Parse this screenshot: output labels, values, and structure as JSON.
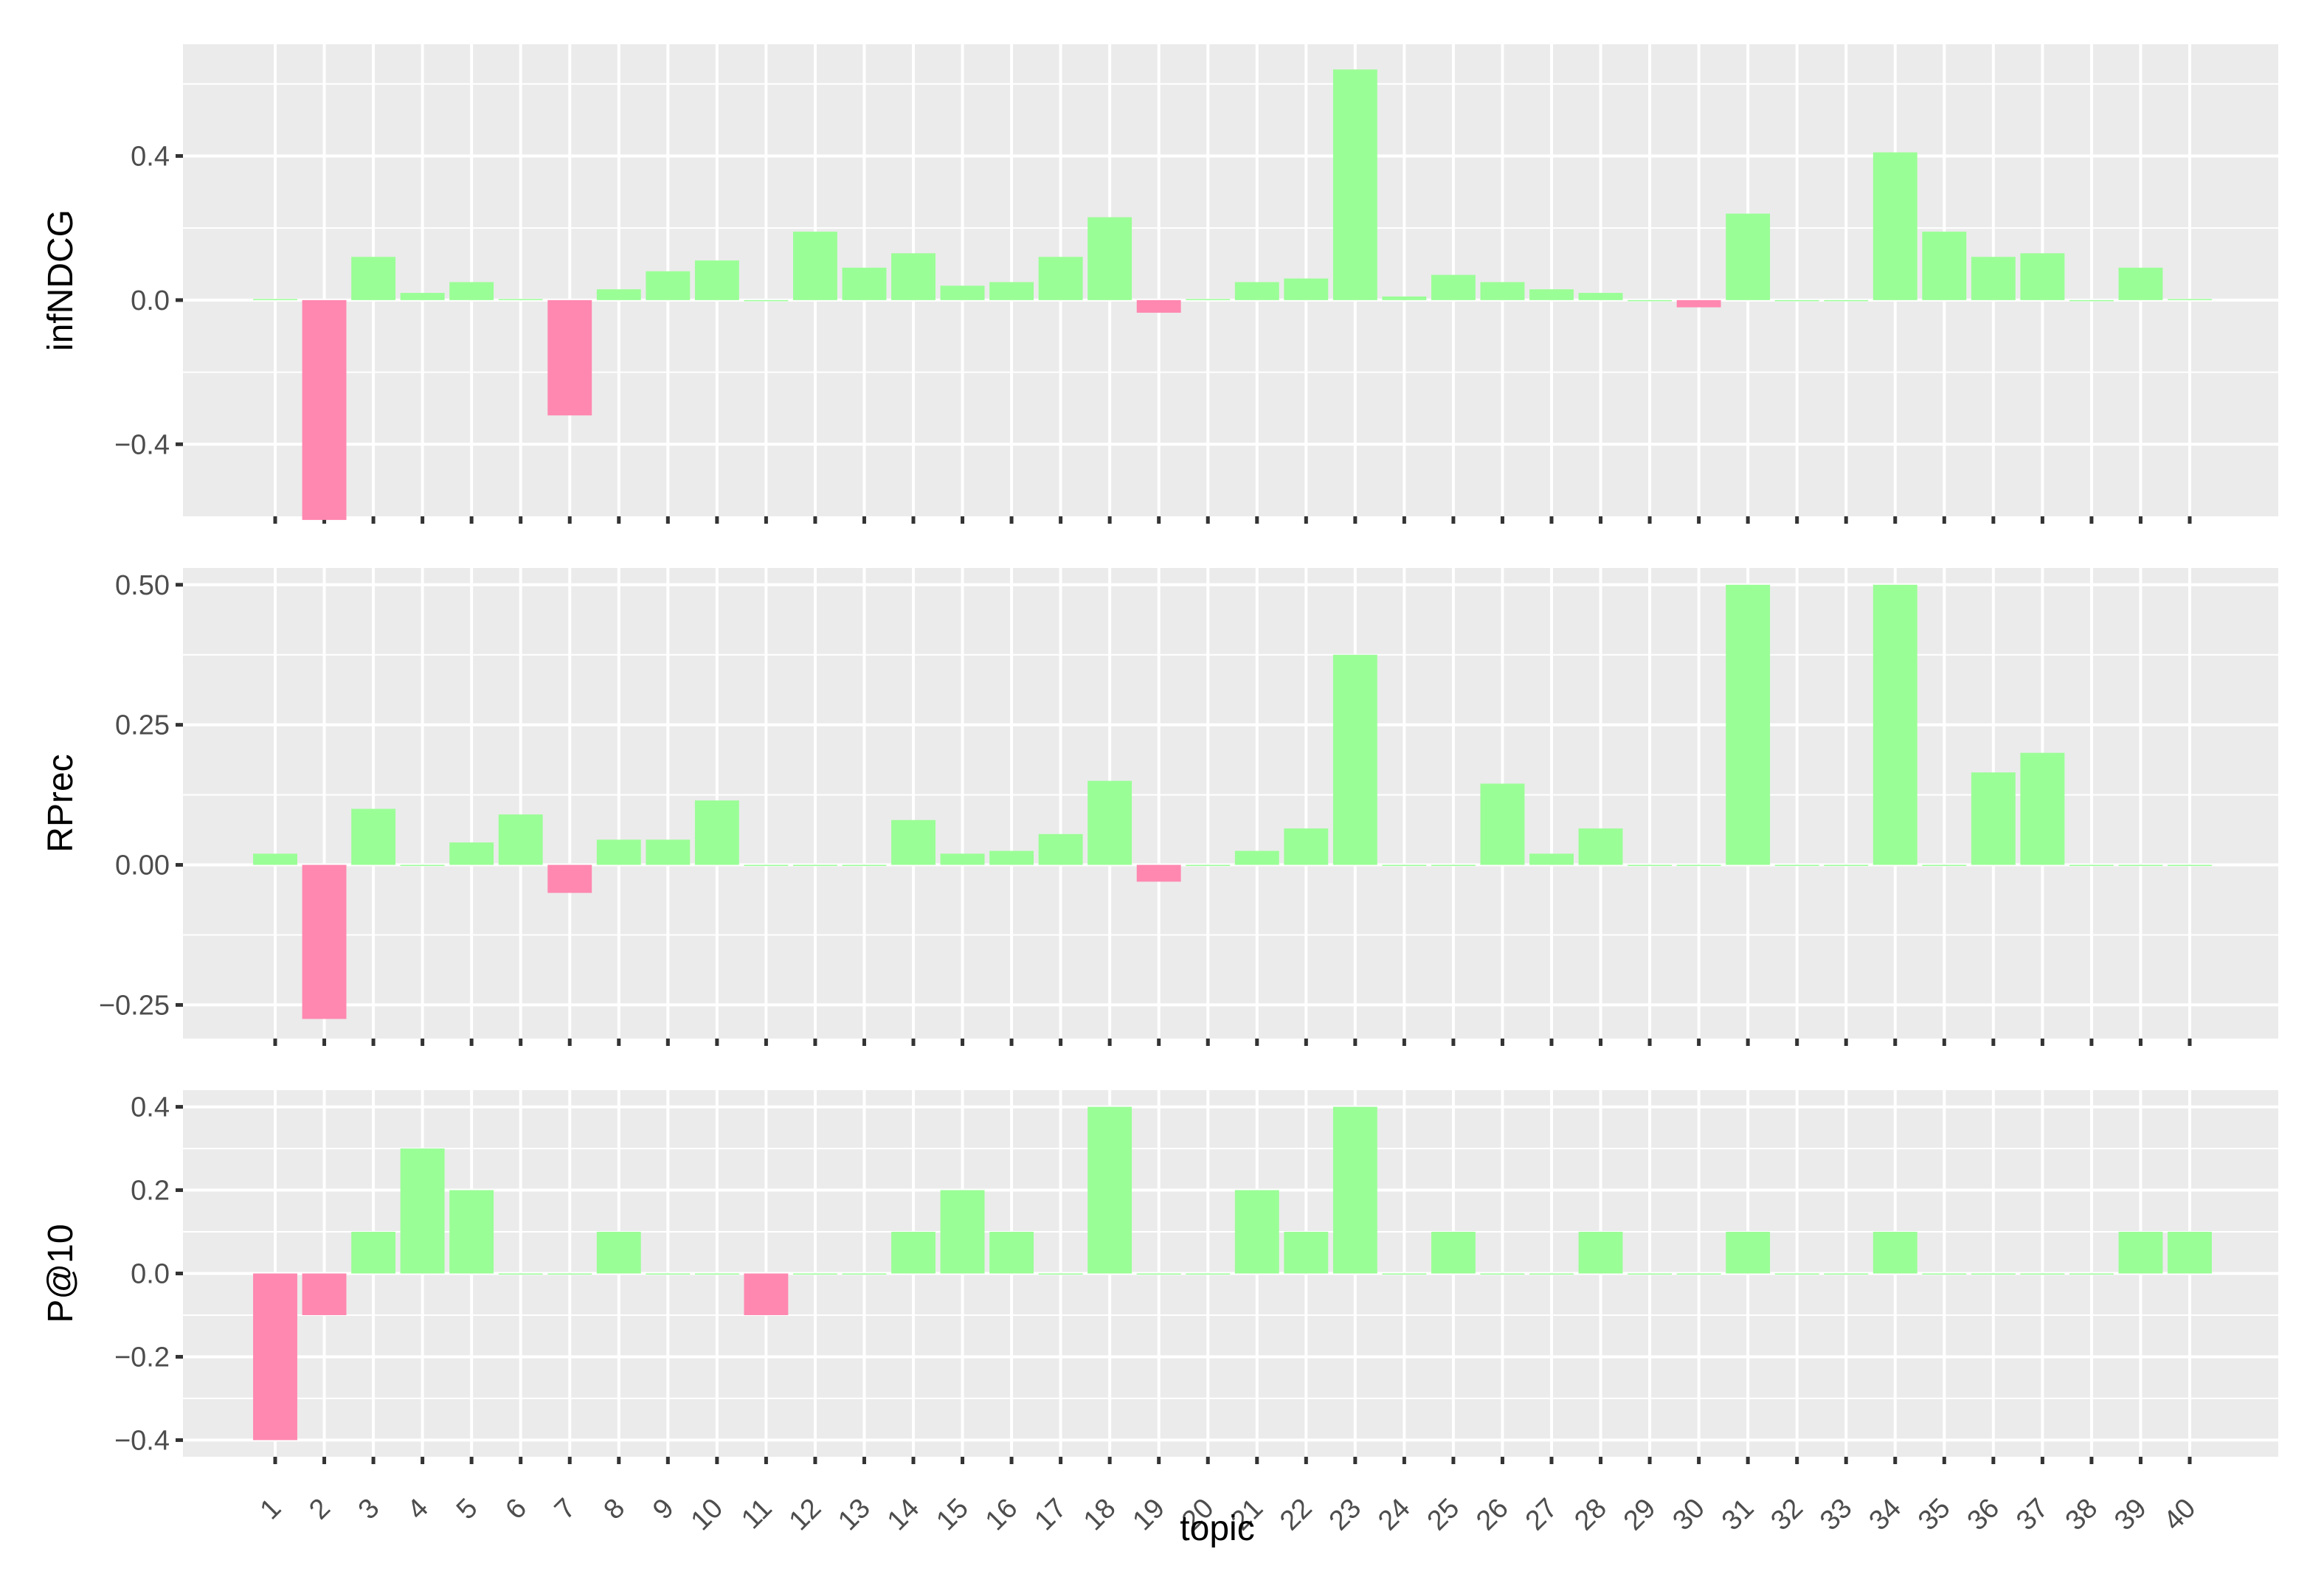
{
  "colors": {
    "positive": "#9afe96",
    "negative": "#ff88b0"
  },
  "chart_data": {
    "type": "bar",
    "xlabel": "topic",
    "categories": [
      "1",
      "2",
      "3",
      "4",
      "5",
      "6",
      "7",
      "8",
      "9",
      "10",
      "11",
      "12",
      "13",
      "14",
      "15",
      "16",
      "17",
      "18",
      "19",
      "20",
      "21",
      "22",
      "23",
      "24",
      "25",
      "26",
      "27",
      "28",
      "29",
      "30",
      "31",
      "32",
      "33",
      "34",
      "35",
      "36",
      "37",
      "38",
      "39",
      "40"
    ],
    "grid": true,
    "panels": [
      {
        "ylabel": "infNDCG",
        "ylim": [
          -0.6,
          0.71
        ],
        "yticks": [
          -0.4,
          0.0,
          0.4
        ],
        "ytick_labels": [
          "−0.4",
          "0.0",
          "0.4"
        ],
        "values": [
          0.003,
          -0.61,
          0.12,
          0.02,
          0.05,
          0.003,
          -0.32,
          0.03,
          0.08,
          0.11,
          0,
          0.19,
          0.09,
          0.13,
          0.04,
          0.05,
          0.12,
          0.23,
          -0.035,
          0.003,
          0.05,
          0.06,
          0.64,
          0.01,
          0.07,
          0.05,
          0.03,
          0.02,
          0,
          -0.02,
          0.24,
          0,
          0,
          0.41,
          0.19,
          0.12,
          0.13,
          0,
          0.09,
          0.003
        ]
      },
      {
        "ylabel": "RPrec",
        "ylim": [
          -0.31,
          0.53
        ],
        "yticks": [
          -0.25,
          0.0,
          0.25,
          0.5
        ],
        "ytick_labels": [
          "−0.25",
          "0.00",
          "0.25",
          "0.50"
        ],
        "values": [
          0.02,
          -0.275,
          0.1,
          0,
          0.04,
          0.09,
          -0.05,
          0.045,
          0.045,
          0.115,
          0,
          0,
          0,
          0.08,
          0.02,
          0.025,
          0.055,
          0.15,
          -0.03,
          0,
          0.025,
          0.065,
          0.375,
          0,
          0,
          0.145,
          0.02,
          0.065,
          0,
          0,
          0.5,
          0,
          0,
          0.5,
          0,
          0.165,
          0.2,
          0,
          0,
          0
        ]
      },
      {
        "ylabel": "P@10",
        "ylim": [
          -0.44,
          0.44
        ],
        "yticks": [
          -0.4,
          -0.2,
          0.0,
          0.2,
          0.4
        ],
        "ytick_labels": [
          "−0.4",
          "−0.2",
          "0.0",
          "0.2",
          "0.4"
        ],
        "values": [
          -0.4,
          -0.1,
          0.1,
          0.3,
          0.2,
          0,
          0,
          0.1,
          0,
          0,
          -0.1,
          0,
          0,
          0.1,
          0.2,
          0.1,
          0,
          0.4,
          0,
          0,
          0.2,
          0.1,
          0.4,
          0,
          0.1,
          0,
          0,
          0.1,
          0,
          0,
          0.1,
          0,
          0,
          0.1,
          0,
          0,
          0,
          0,
          0.1,
          0.1
        ]
      }
    ]
  }
}
